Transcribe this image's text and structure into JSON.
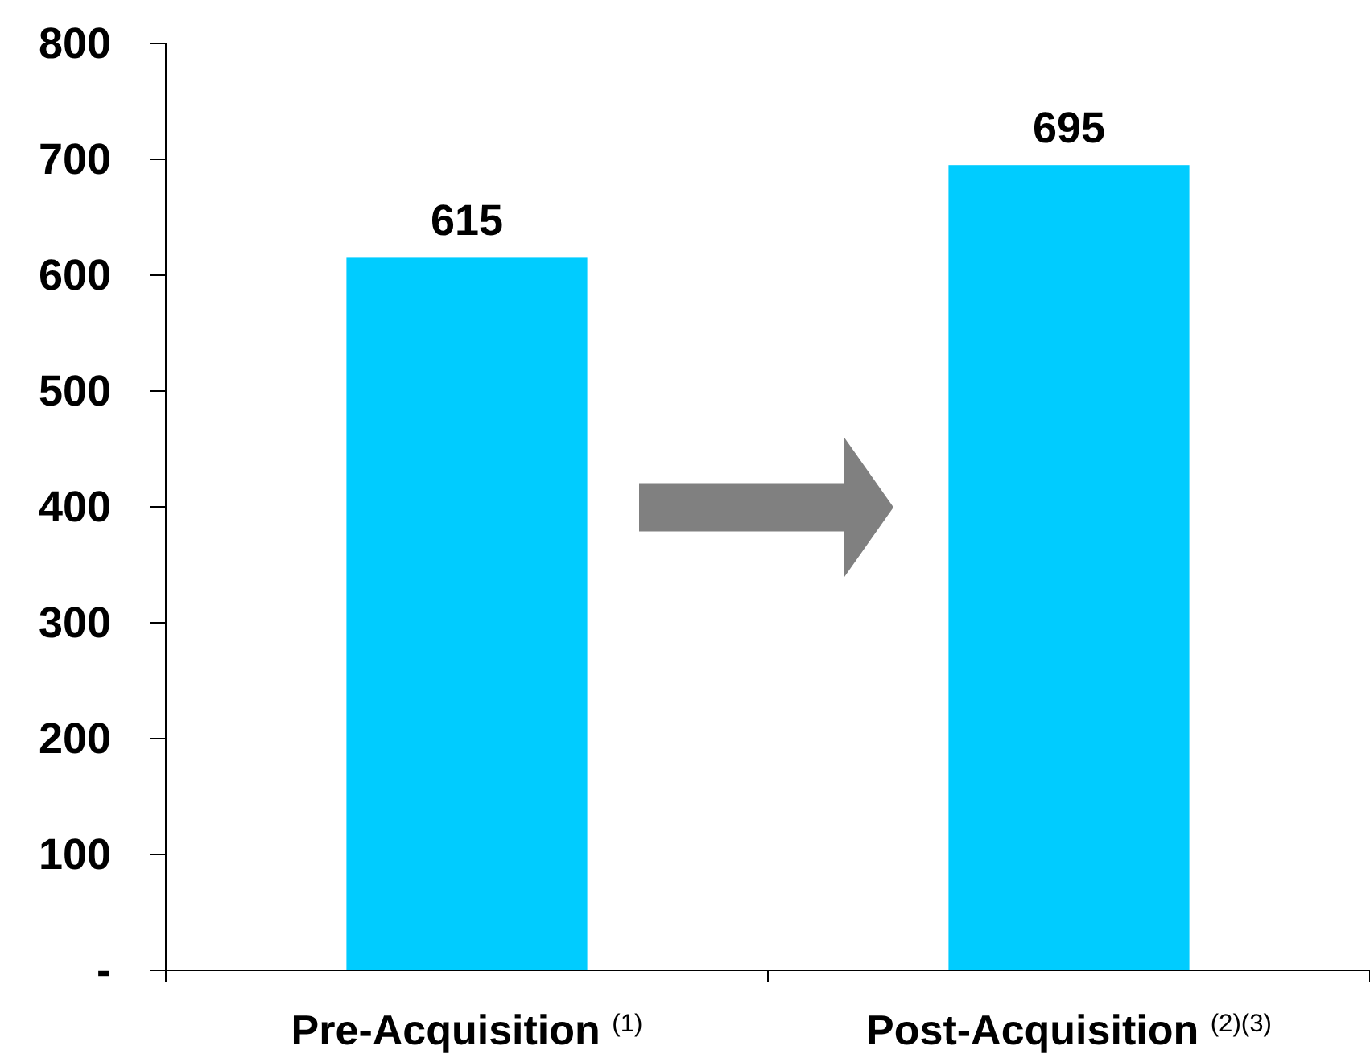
{
  "chart_data": {
    "type": "bar",
    "categories": [
      "Pre-Acquisition $^{(1)}$",
      "Post-Acquisition $^{(2)(3)}$"
    ],
    "values": [
      615,
      695
    ],
    "color": "#00ccff",
    "ylim": [
      0,
      800
    ],
    "yticks": [
      {
        "value": 0,
        "label": "-"
      },
      100,
      200,
      300,
      400,
      500,
      600,
      700,
      800
    ],
    "data_labels": true,
    "grid": false
  }
}
